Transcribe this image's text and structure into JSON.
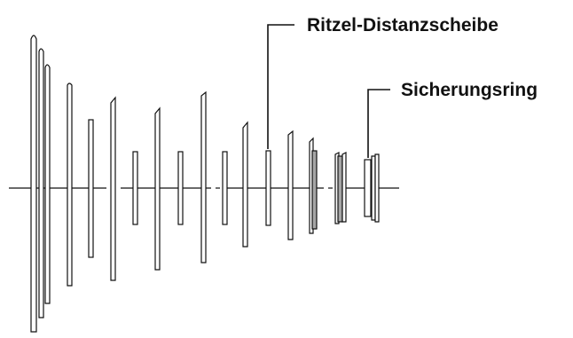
{
  "labels": {
    "spacer": "Ritzel-Distanzscheibe",
    "retaining_ring": "Sicherungsring"
  },
  "colors": {
    "line": "#111111",
    "ring_fill": "#ffffff",
    "shaded_fill": "#a6a6a6",
    "background": "#ffffff"
  }
}
